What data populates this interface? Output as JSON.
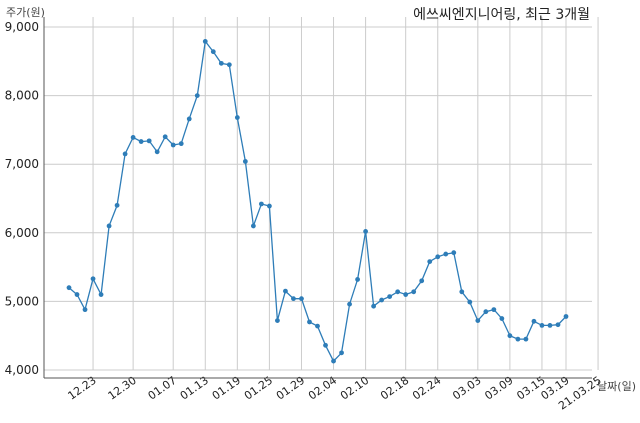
{
  "chart_data": {
    "type": "line",
    "title": "에쓰씨엔지니어링, 최근 3개월",
    "ylabel": "주가(원)",
    "xlabel": "날짜(일)",
    "ylim": [
      4000,
      9000
    ],
    "yticks": [
      4000,
      5000,
      6000,
      7000,
      8000,
      9000
    ],
    "ytick_labels": [
      "4,000",
      "5,000",
      "6,000",
      "7,000",
      "8,000",
      "9,000"
    ],
    "grid": true,
    "marker_color": "#2e7db8",
    "line_color": "#2e7db8",
    "xtick_labels": [
      "12.23",
      "12.30",
      "01.07",
      "01.13",
      "01.19",
      "01.25",
      "01.29",
      "02.04",
      "02.10",
      "02.18",
      "02.24",
      "03.03",
      "03.09",
      "03.15",
      "03.19",
      "21.03.25"
    ],
    "xtick_point_index": [
      3,
      8,
      13,
      17,
      21,
      25,
      29,
      33,
      37,
      42,
      46,
      51,
      55,
      59,
      62,
      66
    ],
    "series": [
      {
        "values": [
          5200,
          5100,
          4880,
          5330,
          5100,
          6100,
          6400,
          7150,
          7390,
          7330,
          7340,
          7180,
          7400,
          7280,
          7300,
          7660,
          8000,
          8790,
          8640,
          8470,
          8450,
          7680,
          7040,
          6100,
          6420,
          6390,
          4720,
          5150,
          5040,
          5040,
          4700,
          4640,
          4360,
          4130,
          4250,
          4960,
          5320,
          6020,
          4930,
          5020,
          5070,
          5140,
          5100,
          5140,
          5300,
          5580,
          5650,
          5690,
          5710,
          5140,
          4990,
          4720,
          4850,
          4880,
          4750,
          4500,
          4450,
          4450,
          4710,
          4650,
          4650,
          4660,
          4780
        ]
      }
    ]
  }
}
